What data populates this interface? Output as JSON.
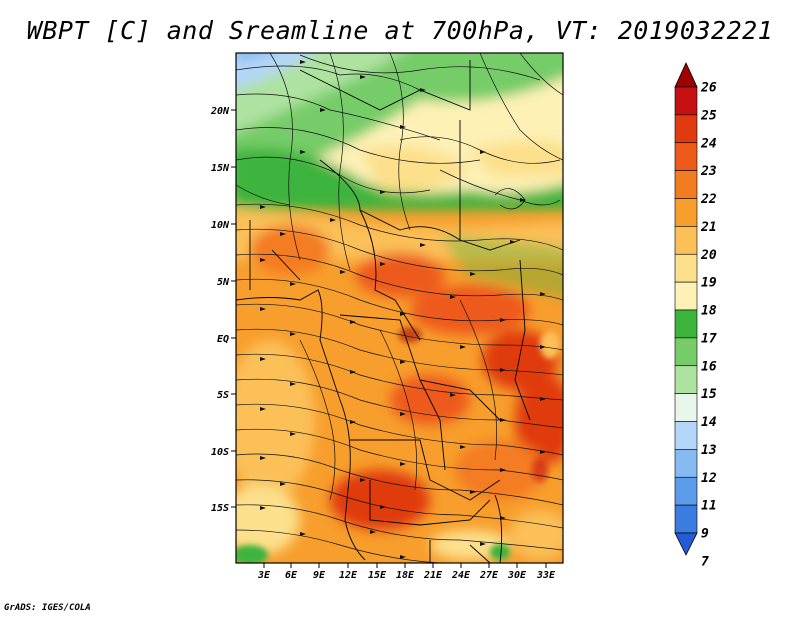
{
  "title": "WBPT [C] and Sreamline at 700hPa, VT: 2019032221",
  "footer": "GrADS: IGES/COLA",
  "map": {
    "lat_labels": [
      "20N",
      "15N",
      "10N",
      "5N",
      "EQ",
      "5S",
      "10S",
      "15S"
    ],
    "lon_labels": [
      "3E",
      "6E",
      "9E",
      "12E",
      "15E",
      "18E",
      "21E",
      "24E",
      "27E",
      "30E",
      "33E"
    ]
  },
  "colorbar": {
    "levels": [
      "26",
      "25",
      "24",
      "23",
      "22",
      "21",
      "20",
      "19",
      "18",
      "17",
      "16",
      "15",
      "14",
      "13",
      "12",
      "11",
      "9",
      "7"
    ],
    "colors": [
      "#a00000",
      "#c41010",
      "#e03a10",
      "#ee5a1a",
      "#f47c20",
      "#f79e2c",
      "#fbc058",
      "#fce08c",
      "#fdf1b6",
      "#3cb43c",
      "#76cc68",
      "#aee2a0",
      "#e8f6ec",
      "#b4d6f8",
      "#88baf2",
      "#5c9aea",
      "#3b7ce0",
      "#245cd8"
    ]
  },
  "colors": {
    "frame": "#000000",
    "streamline": "#111111"
  }
}
